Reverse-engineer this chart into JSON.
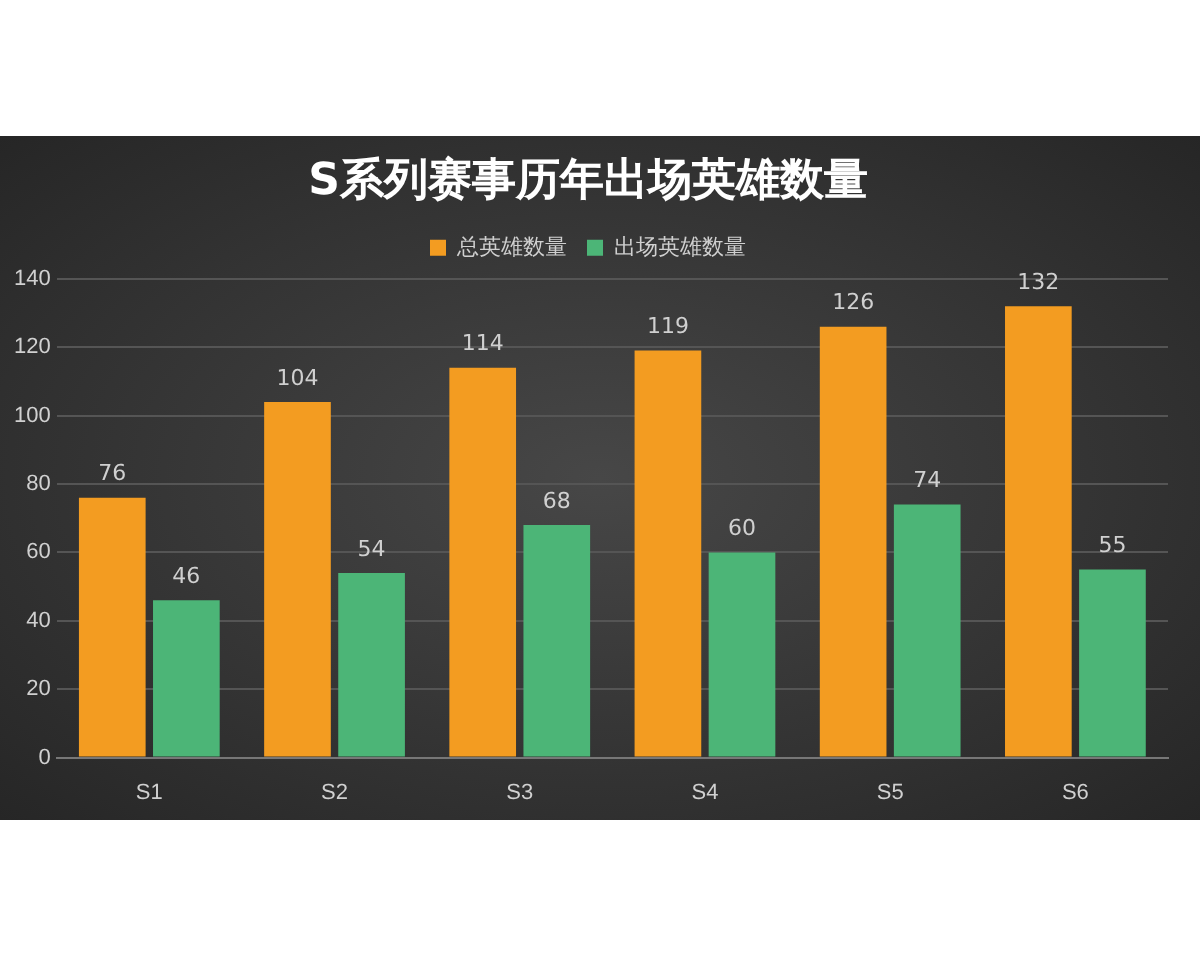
{
  "chart_data": {
    "type": "bar",
    "title": "S系列赛事历年出场英雄数量",
    "categories": [
      "S1",
      "S2",
      "S3",
      "S4",
      "S5",
      "S6"
    ],
    "series": [
      {
        "name": "总英雄数量",
        "color": "#f39c21",
        "values": [
          76,
          104,
          114,
          119,
          126,
          132
        ]
      },
      {
        "name": "出场英雄数量",
        "color": "#4cb577",
        "values": [
          46,
          54,
          68,
          60,
          74,
          55
        ]
      }
    ],
    "ylim": [
      0,
      140
    ],
    "yticks": [
      0,
      20,
      40,
      60,
      80,
      100,
      120,
      140
    ],
    "grid": "y",
    "legend": "top",
    "data_labels": true
  }
}
